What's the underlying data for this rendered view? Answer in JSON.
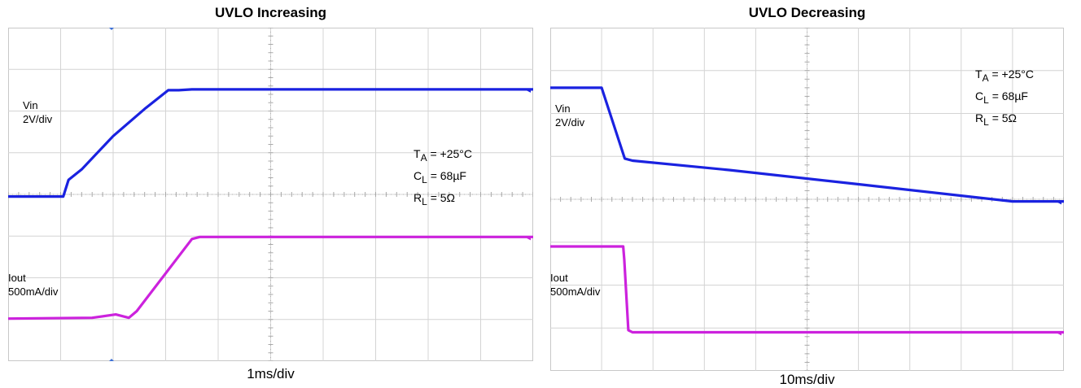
{
  "chart_data": [
    {
      "type": "line",
      "title": "UVLO Increasing",
      "xlabel": "1ms/div",
      "x_divisions": 10,
      "y_divisions": 8,
      "grid": true,
      "conditions": {
        "ta_sub": "A",
        "ta_value": " = +25°C",
        "cl_sub": "L",
        "cl_value": " = 68µF",
        "rl_sub": "L",
        "rl_value": " = 5Ω",
        "t": "T",
        "c": "C",
        "r": "R"
      },
      "series": [
        {
          "name": "Vin",
          "scale": "2V/div",
          "color": "#1a22e0",
          "x": [
            0,
            1.05,
            1.15,
            1.4,
            2.0,
            2.6,
            3.05,
            3.25,
            3.5,
            10
          ],
          "y": [
            3.95,
            3.95,
            4.35,
            4.6,
            5.4,
            6.05,
            6.5,
            6.5,
            6.52,
            6.52
          ]
        },
        {
          "name": "Iout",
          "scale": "500mA/div",
          "color": "#cc22dd",
          "x": [
            0,
            1.6,
            2.05,
            2.3,
            2.45,
            3.5,
            3.65,
            10
          ],
          "y": [
            1.02,
            1.04,
            1.12,
            1.04,
            1.2,
            2.93,
            2.98,
            2.98
          ]
        }
      ]
    },
    {
      "type": "line",
      "title": "UVLO Decreasing",
      "xlabel": "10ms/div",
      "x_divisions": 10,
      "y_divisions": 8,
      "grid": true,
      "conditions": {
        "ta_sub": "A",
        "ta_value": " = +25°C",
        "cl_sub": "L",
        "cl_value": " = 68µF",
        "rl_sub": "L",
        "rl_value": " = 5Ω",
        "t": "T",
        "c": "C",
        "r": "R"
      },
      "series": [
        {
          "name": "Vin",
          "scale": "2V/div",
          "color": "#1a22e0",
          "x": [
            0,
            1.0,
            1.45,
            1.6,
            3.5,
            6.0,
            9.0,
            10
          ],
          "y": [
            6.6,
            6.6,
            4.95,
            4.9,
            4.68,
            4.35,
            3.95,
            3.95
          ]
        },
        {
          "name": "Iout",
          "scale": "500mA/div",
          "color": "#cc22dd",
          "x": [
            0,
            1.42,
            1.44,
            1.52,
            1.6,
            10
          ],
          "y": [
            2.9,
            2.9,
            2.6,
            0.95,
            0.9,
            0.9
          ]
        }
      ]
    }
  ]
}
